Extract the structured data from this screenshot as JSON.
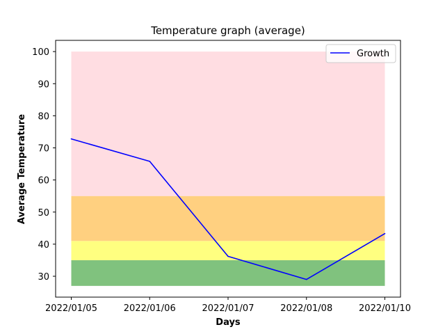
{
  "chart_data": {
    "type": "line",
    "title": "Temperature graph (average)",
    "xlabel": "Days",
    "ylabel": "Average Temperature",
    "categories": [
      "2022/01/05",
      "2022/01/06",
      "2022/01/07",
      "2022/01/08",
      "2022/01/10"
    ],
    "series": [
      {
        "name": "Growth",
        "color": "#0000ff",
        "values": [
          72.8,
          65.8,
          36.2,
          29.0,
          43.3
        ]
      }
    ],
    "yticks": [
      30,
      40,
      50,
      60,
      70,
      80,
      90,
      100
    ],
    "ylim": [
      23.5,
      103.5
    ],
    "bands": [
      {
        "from": 27,
        "to": 35,
        "color": "#80c27e"
      },
      {
        "from": 35,
        "to": 41,
        "color": "#ffff80"
      },
      {
        "from": 41,
        "to": 55,
        "color": "#ffd080"
      },
      {
        "from": 55,
        "to": 100,
        "color": "#ffdde2"
      }
    ],
    "legend_position": "top-right",
    "grid": false
  }
}
